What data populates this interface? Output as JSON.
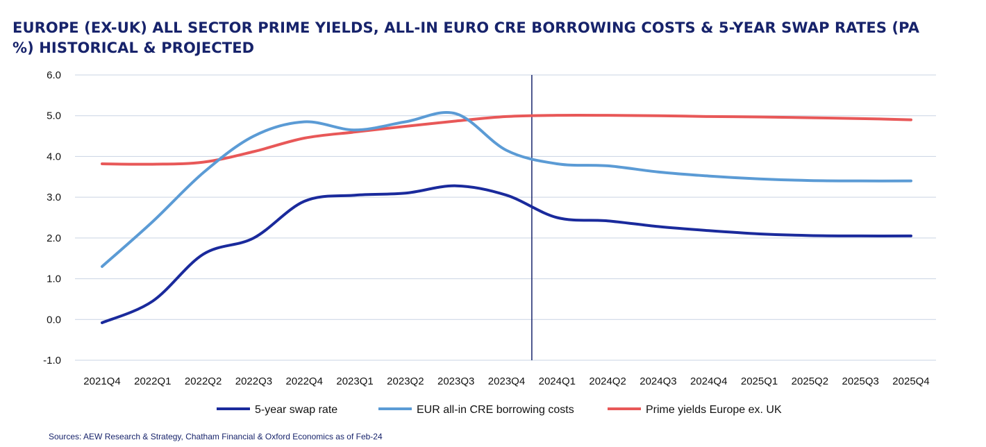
{
  "title": "EUROPE (EX-UK) ALL SECTOR PRIME YIELDS, ALL-IN EURO CRE BORROWING COSTS & 5-YEAR SWAP RATES (PA %) HISTORICAL & PROJECTED",
  "source": "Sources: AEW Research & Strategy, Chatham Financial & Oxford Economics as of Feb-24",
  "chart_data": {
    "type": "line",
    "title": "EUROPE (EX-UK) ALL SECTOR PRIME YIELDS, ALL-IN EURO CRE BORROWING COSTS & 5-YEAR SWAP RATES (PA %) HISTORICAL & PROJECTED",
    "xlabel": "",
    "ylabel": "",
    "categories": [
      "2021Q4",
      "2022Q1",
      "2022Q2",
      "2022Q3",
      "2022Q4",
      "2023Q1",
      "2023Q2",
      "2023Q3",
      "2023Q4",
      "2024Q1",
      "2024Q2",
      "2024Q3",
      "2024Q4",
      "2025Q1",
      "2025Q2",
      "2025Q3",
      "2025Q4"
    ],
    "ylim": [
      -1.0,
      6.0
    ],
    "yticks": [
      "-1.0",
      "0.0",
      "1.0",
      "2.0",
      "3.0",
      "4.0",
      "5.0",
      "6.0"
    ],
    "grid": true,
    "legend_position": "bottom",
    "divider_between": [
      "2023Q4",
      "2024Q1"
    ],
    "series": [
      {
        "name": "5-year swap rate",
        "color": "#1a2a9c",
        "values": [
          -0.08,
          0.45,
          1.6,
          2.0,
          2.9,
          3.05,
          3.1,
          3.28,
          3.05,
          2.5,
          2.42,
          2.28,
          2.18,
          2.1,
          2.06,
          2.05,
          2.05
        ]
      },
      {
        "name": "EUR all-in CRE borrowing costs",
        "color": "#5b9bd5",
        "values": [
          1.3,
          2.4,
          3.6,
          4.5,
          4.85,
          4.65,
          4.85,
          5.05,
          4.15,
          3.82,
          3.77,
          3.62,
          3.52,
          3.45,
          3.41,
          3.4,
          3.4
        ]
      },
      {
        "name": "Prime yields Europe ex. UK",
        "color": "#e85858",
        "values": [
          3.82,
          3.81,
          3.86,
          4.12,
          4.45,
          4.6,
          4.74,
          4.87,
          4.98,
          5.01,
          5.01,
          5.0,
          4.98,
          4.97,
          4.95,
          4.93,
          4.9
        ]
      }
    ]
  }
}
